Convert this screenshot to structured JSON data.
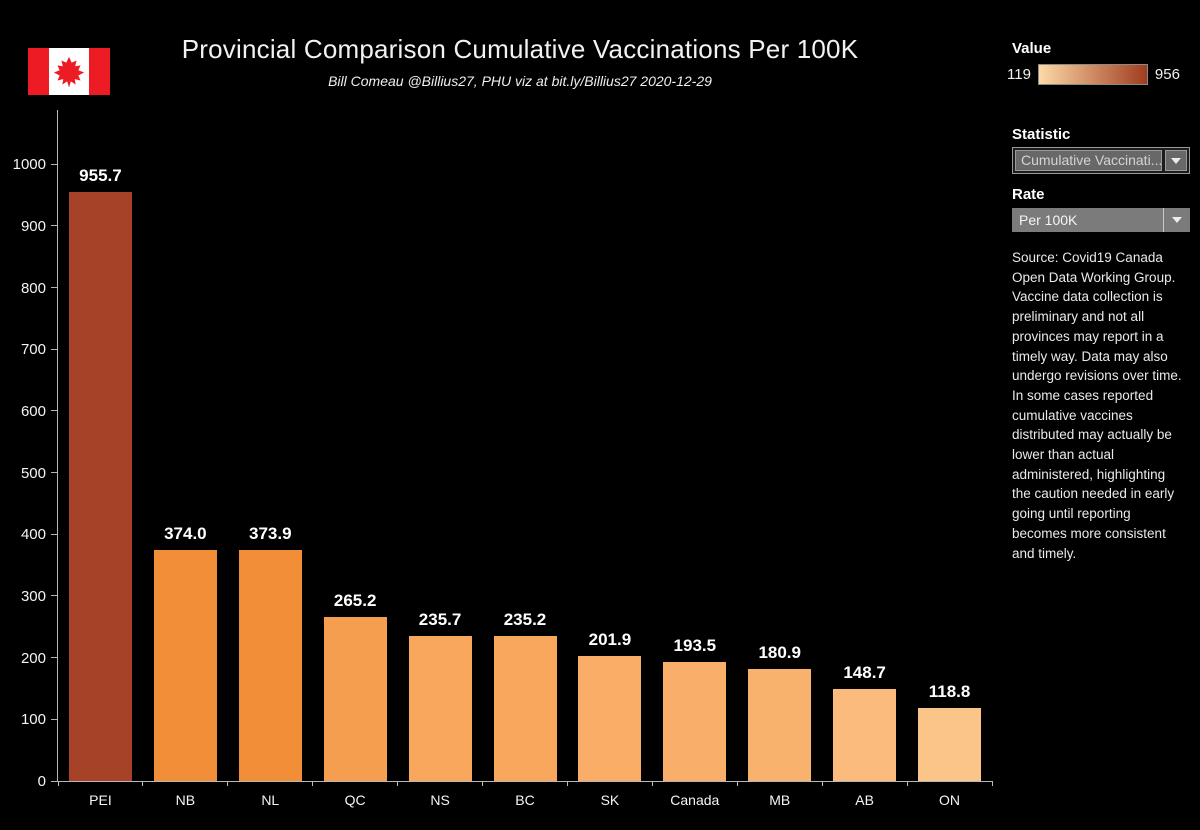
{
  "header": {
    "title": "Provincial Comparison Cumulative Vaccinations Per 100K",
    "subtitle": "Bill Comeau @Billius27, PHU viz at bit.ly/Billius27  2020-12-29"
  },
  "legend": {
    "label": "Value",
    "min": "119",
    "max": "956",
    "gradient_start": "#fdd9a7",
    "gradient_end": "#a03c1f"
  },
  "controls": {
    "statistic": {
      "label": "Statistic",
      "value": "Cumulative Vaccinati..."
    },
    "rate": {
      "label": "Rate",
      "value": "Per 100K"
    }
  },
  "source_note": "Source: Covid19 Canada Open Data Working Group. Vaccine data collection is preliminary and not all provinces may report in a timely way. Data may also undergo revisions over time. In some cases reported cumulative vaccines distributed may actually be lower than actual administered, highlighting the caution needed in early going until reporting becomes more consistent and timely.",
  "flag_color": "#ed1c24",
  "chart_data": {
    "type": "bar",
    "title": "Provincial Comparison Cumulative Vaccinations Per 100K",
    "categories": [
      "PEI",
      "NB",
      "NL",
      "QC",
      "NS",
      "BC",
      "SK",
      "Canada",
      "MB",
      "AB",
      "ON"
    ],
    "values": [
      955.7,
      374.0,
      373.9,
      265.2,
      235.7,
      235.2,
      201.9,
      193.5,
      180.9,
      148.7,
      118.8
    ],
    "value_labels": [
      "955.7",
      "374.0",
      "373.9",
      "265.2",
      "235.7",
      "235.2",
      "201.9",
      "193.5",
      "180.9",
      "148.7",
      "118.8"
    ],
    "bar_colors": [
      "#a64228",
      "#f28e38",
      "#f28e38",
      "#f69e4f",
      "#f8a75d",
      "#f8a75d",
      "#f9ad66",
      "#f9af6a",
      "#f9b16e",
      "#fabb7d",
      "#fbc489"
    ],
    "xlabel": "",
    "ylabel": "",
    "ylim": [
      0,
      1088
    ],
    "yticks": [
      0,
      100,
      200,
      300,
      400,
      500,
      600,
      700,
      800,
      900,
      1000
    ],
    "grid": false,
    "color_scale": {
      "label": "Value",
      "min": 119,
      "max": 956,
      "from": "#fdd9a7",
      "to": "#a03c1f"
    },
    "legend_position": "top-right"
  }
}
